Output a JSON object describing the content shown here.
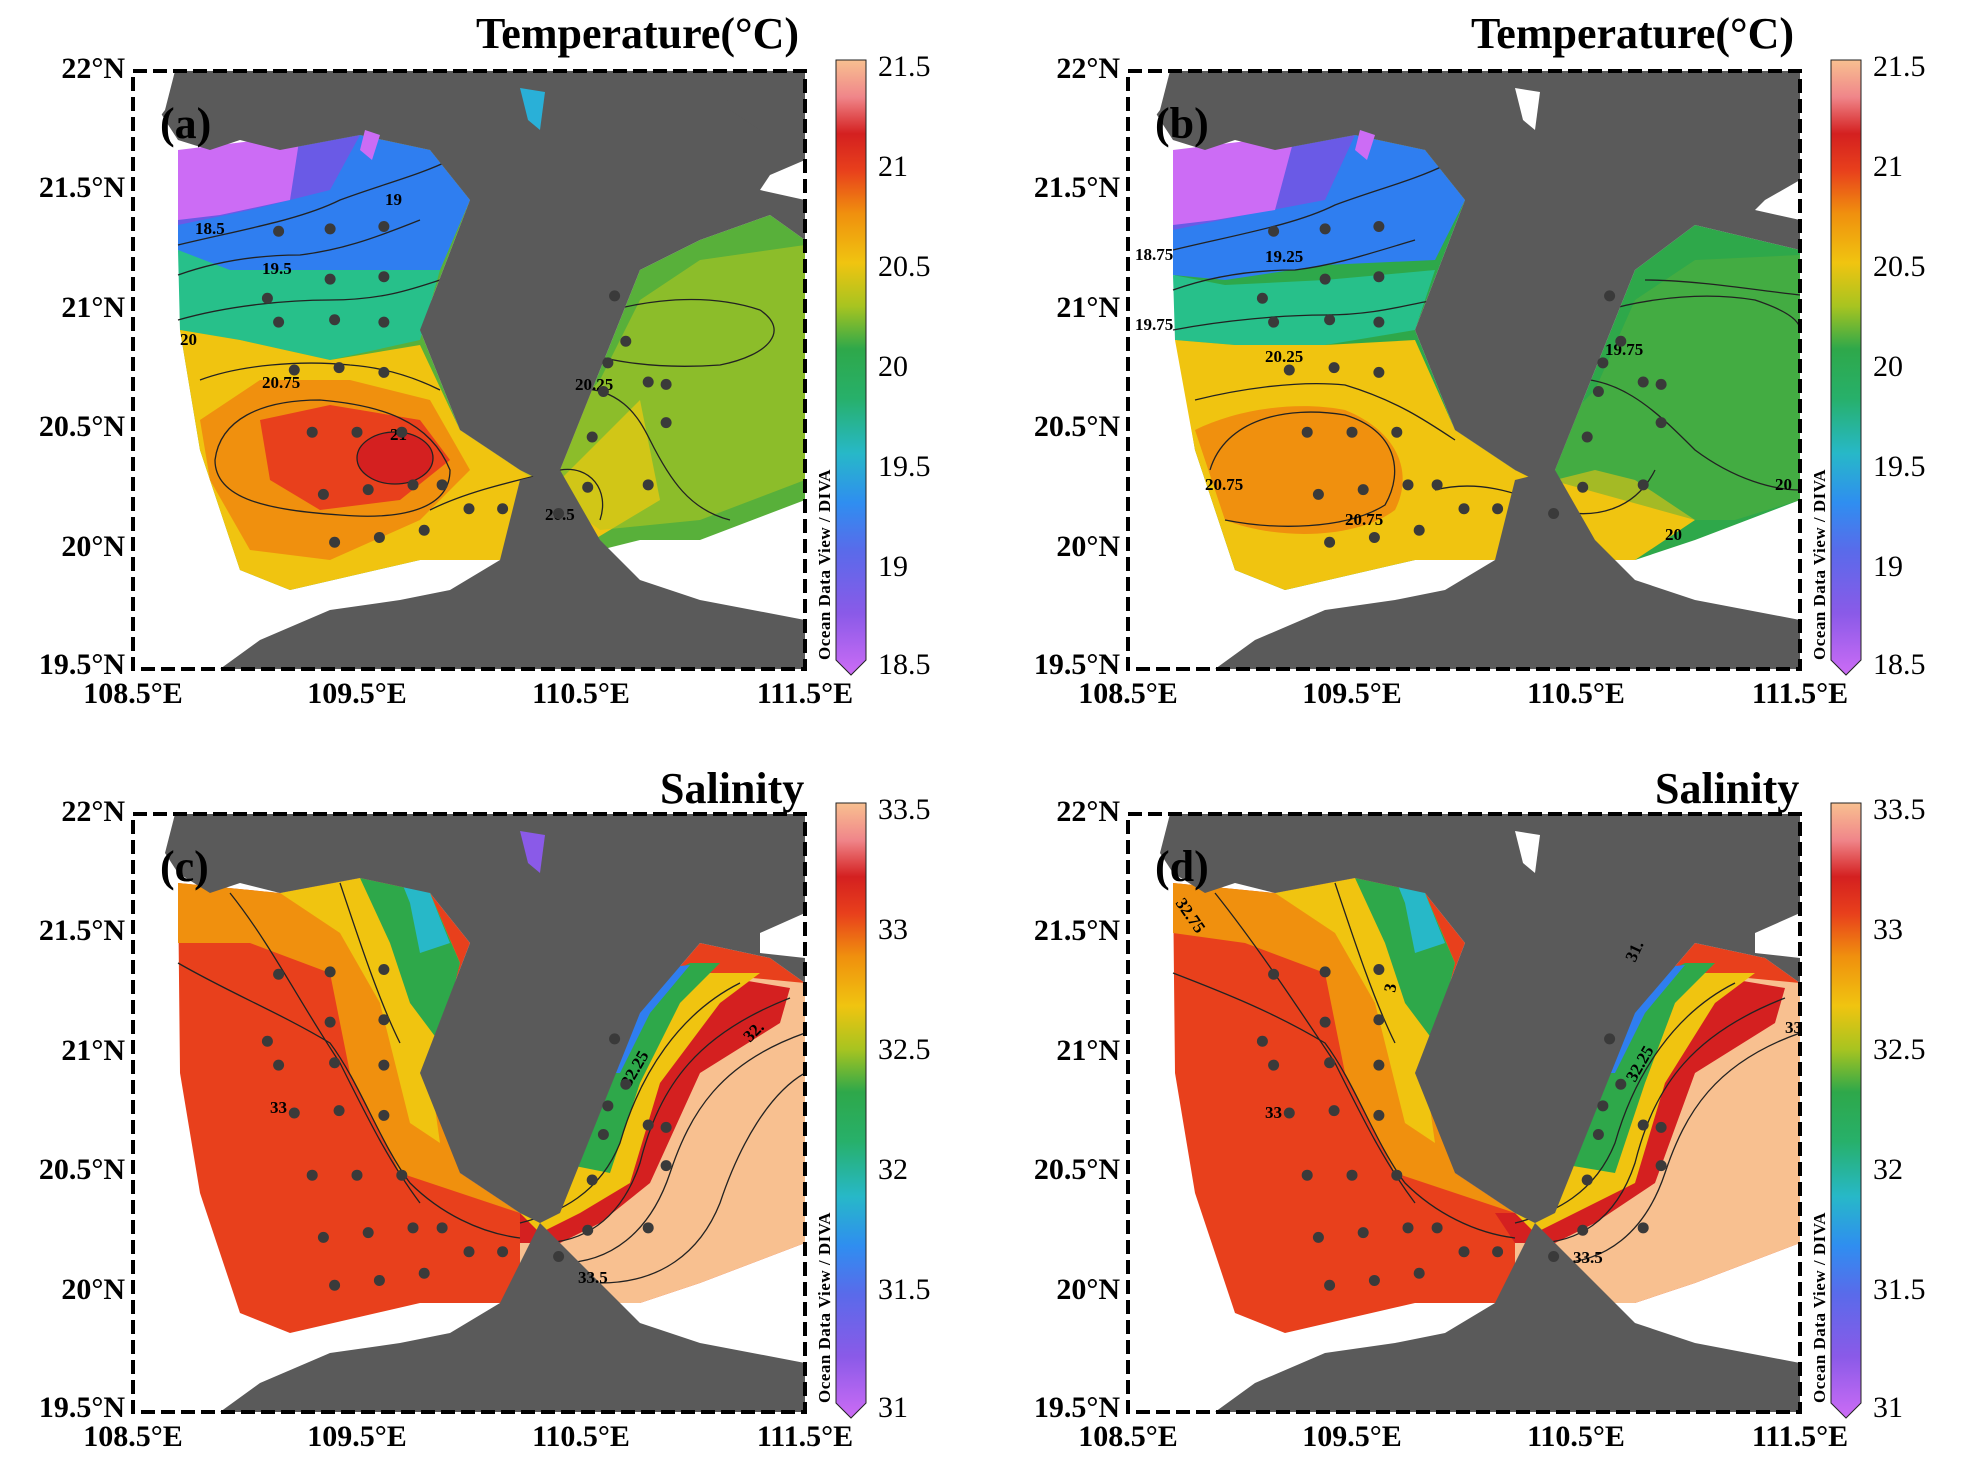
{
  "axes": {
    "y_ticks": [
      "22°N",
      "21.5°N",
      "21°N",
      "20.5°N",
      "20°N",
      "19.5°N"
    ],
    "x_ticks": [
      "108.5°E",
      "109.5°E",
      "110.5°E",
      "111.5°E"
    ],
    "xlim": [
      108.5,
      111.5
    ],
    "ylim": [
      19.5,
      22.0
    ]
  },
  "colorbar_caption": "Ocean Data View / DIVA",
  "colors": {
    "land": "#5a5a5a",
    "station": "#3a3a3a",
    "frame": "#000000",
    "temperature_scale": [
      "#cc6cf5",
      "#6a5ae6",
      "#2f7ef0",
      "#29b0d8",
      "#27c08a",
      "#2ea84a",
      "#58b03a",
      "#b8c91e",
      "#f0c410",
      "#f0900e",
      "#e8401c",
      "#d42020",
      "#f0868a",
      "#f8c090"
    ],
    "salinity_scale": [
      "#cc6cf5",
      "#6a5ae6",
      "#2f7ef0",
      "#29b0d8",
      "#27c08a",
      "#2ea84a",
      "#58b03a",
      "#b8c91e",
      "#f0c410",
      "#f0900e",
      "#e8401c",
      "#d42020",
      "#f0868a",
      "#f8c090"
    ]
  },
  "stations": [
    [
      109.15,
      21.33
    ],
    [
      109.38,
      21.34
    ],
    [
      109.62,
      21.35
    ],
    [
      109.38,
      21.13
    ],
    [
      109.62,
      21.14
    ],
    [
      109.1,
      21.05
    ],
    [
      109.15,
      20.95
    ],
    [
      109.4,
      20.96
    ],
    [
      109.62,
      20.95
    ],
    [
      109.22,
      20.75
    ],
    [
      109.42,
      20.76
    ],
    [
      109.62,
      20.74
    ],
    [
      109.3,
      20.49
    ],
    [
      109.5,
      20.49
    ],
    [
      109.7,
      20.49
    ],
    [
      109.35,
      20.23
    ],
    [
      109.55,
      20.25
    ],
    [
      109.75,
      20.27
    ],
    [
      109.88,
      20.27
    ],
    [
      109.4,
      20.03
    ],
    [
      109.6,
      20.05
    ],
    [
      109.8,
      20.08
    ],
    [
      110.0,
      20.17
    ],
    [
      110.15,
      20.17
    ],
    [
      110.4,
      20.15
    ],
    [
      110.53,
      20.26
    ],
    [
      110.55,
      20.47
    ],
    [
      110.6,
      20.66
    ],
    [
      110.62,
      20.78
    ],
    [
      110.65,
      21.06
    ],
    [
      110.7,
      20.87
    ],
    [
      110.8,
      20.7
    ],
    [
      110.88,
      20.69
    ],
    [
      110.88,
      20.53
    ],
    [
      110.8,
      20.27
    ]
  ],
  "panels": [
    {
      "id": "a",
      "label": "(a)",
      "title": "Temperature(°C)",
      "variable": "temperature",
      "colorbar_ticks": [
        "21.5",
        "21",
        "20.5",
        "20",
        "19.5",
        "19",
        "18.5"
      ],
      "contour_labels": [
        "18.5",
        "19",
        "19.5",
        "20",
        "20.75",
        "21",
        "20.25",
        "20.5"
      ]
    },
    {
      "id": "b",
      "label": "(b)",
      "title": "Temperature(°C)",
      "variable": "temperature",
      "colorbar_ticks": [
        "21.5",
        "21",
        "20.5",
        "20",
        "19.5",
        "19",
        "18.5"
      ],
      "contour_labels": [
        "18.75",
        "19.25",
        "19.75",
        "20.25",
        "19.75",
        "20.75",
        "20.75",
        "20",
        "20"
      ]
    },
    {
      "id": "c",
      "label": "(c)",
      "title": "Salinity",
      "variable": "salinity",
      "colorbar_ticks": [
        "33.5",
        "33",
        "32.5",
        "32",
        "31.5",
        "31"
      ],
      "contour_labels": [
        "33",
        "32.25",
        "32.",
        "33.5"
      ]
    },
    {
      "id": "d",
      "label": "(d)",
      "title": "Salinity",
      "variable": "salinity",
      "colorbar_ticks": [
        "33.5",
        "33",
        "32.5",
        "32",
        "31.5",
        "31"
      ],
      "contour_labels": [
        "32.75",
        "33",
        "32.25",
        "31.",
        "33.5",
        "33",
        "3"
      ]
    }
  ]
}
